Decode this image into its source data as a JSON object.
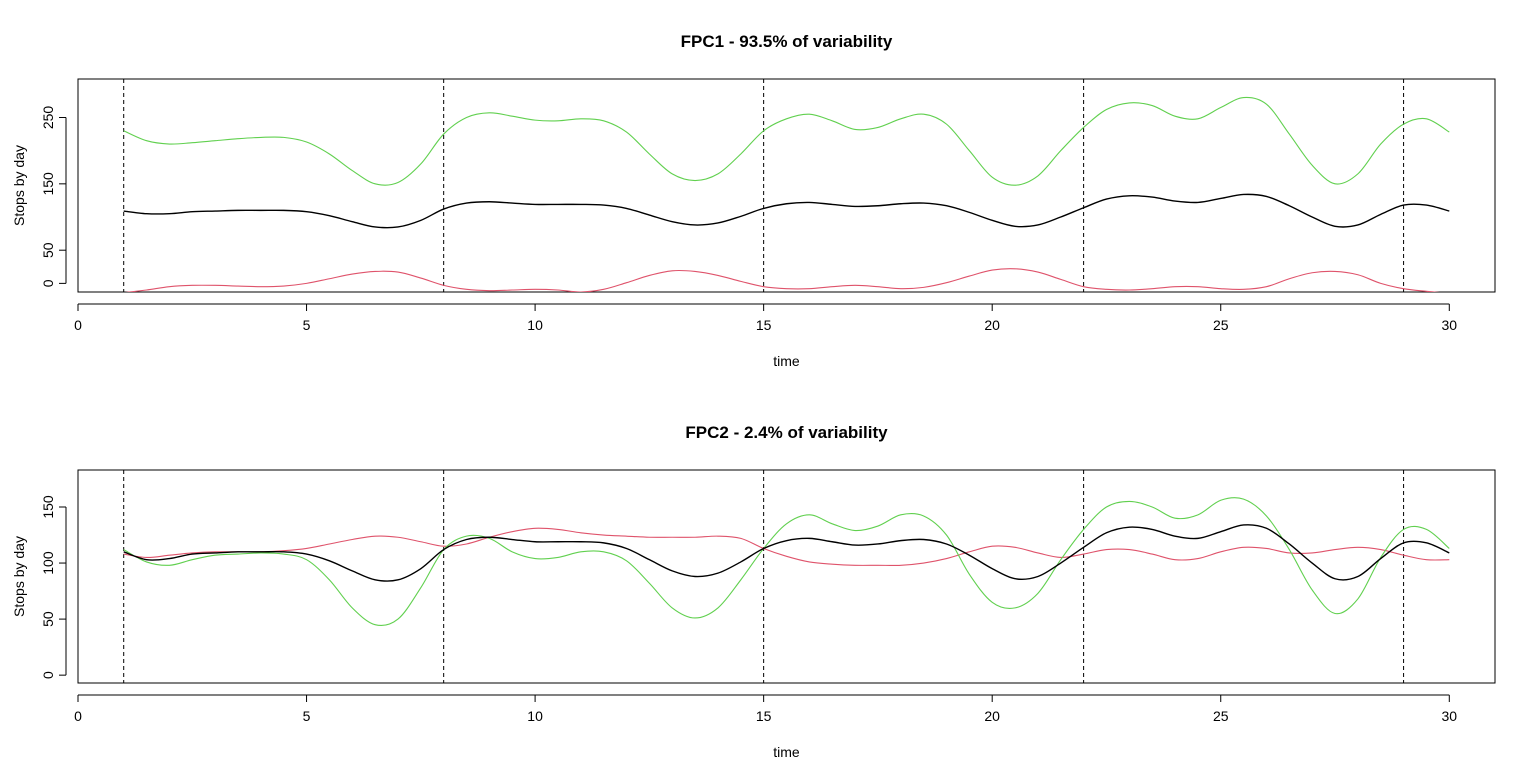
{
  "colors": {
    "mean": "#000000",
    "minus": "#DF536B",
    "plus": "#61D04F"
  },
  "chart_data": [
    {
      "type": "line",
      "title": "FPC1 - 93.5% of variability",
      "xlabel": "time",
      "ylabel": "Stops by day",
      "xlim": [
        0,
        31
      ],
      "ylim": [
        -13,
        308
      ],
      "xticks": [
        0,
        5,
        10,
        15,
        20,
        25,
        30
      ],
      "xtick_labels": [
        "0",
        "5",
        "10",
        "15",
        "20",
        "25",
        "30"
      ],
      "yticks": [
        0,
        50,
        150,
        250
      ],
      "ytick_labels": [
        "0",
        "50",
        "150",
        "250"
      ],
      "vlines": [
        1,
        8,
        15,
        22,
        29
      ],
      "grid": false,
      "series": [
        {
          "role": "mean",
          "color": "#000000",
          "x": [
            1,
            1.5,
            2,
            2.5,
            3,
            3.5,
            4,
            4.5,
            5,
            5.5,
            6,
            6.5,
            7,
            7.5,
            8,
            8.5,
            9,
            9.5,
            10,
            10.5,
            11,
            11.5,
            12,
            12.5,
            13,
            13.5,
            14,
            14.5,
            15,
            15.5,
            16,
            16.5,
            17,
            17.5,
            18,
            18.5,
            19,
            19.5,
            20,
            20.5,
            21,
            21.5,
            22,
            22.5,
            23,
            23.5,
            24,
            24.5,
            25,
            25.5,
            26,
            26.5,
            27,
            27.5,
            28,
            28.5,
            29,
            29.5,
            30
          ],
          "y": [
            109,
            105,
            105,
            108,
            109,
            110,
            110,
            110,
            108,
            102,
            93,
            85,
            85,
            95,
            112,
            121,
            123,
            121,
            119,
            119,
            119,
            118,
            113,
            103,
            93,
            88,
            91,
            101,
            113,
            120,
            122,
            119,
            116,
            117,
            120,
            121,
            117,
            107,
            95,
            86,
            88,
            100,
            114,
            127,
            132,
            130,
            124,
            122,
            128,
            134,
            131,
            117,
            100,
            86,
            88,
            104,
            118,
            118,
            109
          ]
        },
        {
          "role": "minus",
          "color": "#DF536B",
          "x": [
            1,
            1.5,
            2,
            2.5,
            3,
            3.5,
            4,
            4.5,
            5,
            5.5,
            6,
            6.5,
            7,
            7.5,
            8,
            8.5,
            9,
            9.5,
            10,
            10.5,
            11,
            11.5,
            12,
            12.5,
            13,
            13.5,
            14,
            14.5,
            15,
            15.5,
            16,
            16.5,
            17,
            17.5,
            18,
            18.5,
            19,
            19.5,
            20,
            20.5,
            21,
            21.5,
            22,
            22.5,
            23,
            23.5,
            24,
            24.5,
            25,
            25.5,
            26,
            26.5,
            27,
            27.5,
            28,
            28.5,
            29,
            29.5,
            30
          ],
          "y": [
            -14,
            -10,
            -5,
            -3,
            -3,
            -4,
            -5,
            -4,
            0,
            7,
            14,
            18,
            17,
            8,
            -3,
            -9,
            -11,
            -10,
            -9,
            -10,
            -13,
            -9,
            1,
            12,
            19,
            18,
            12,
            3,
            -5,
            -8,
            -8,
            -5,
            -3,
            -5,
            -8,
            -6,
            1,
            11,
            20,
            22,
            17,
            6,
            -5,
            -9,
            -10,
            -8,
            -5,
            -5,
            -8,
            -9,
            -5,
            7,
            16,
            18,
            13,
            0,
            -8,
            -12,
            -15
          ]
        },
        {
          "role": "plus",
          "color": "#61D04F",
          "x": [
            1,
            1.5,
            2,
            2.5,
            3,
            3.5,
            4,
            4.5,
            5,
            5.5,
            6,
            6.5,
            7,
            7.5,
            8,
            8.5,
            9,
            9.5,
            10,
            10.5,
            11,
            11.5,
            12,
            12.5,
            13,
            13.5,
            14,
            14.5,
            15,
            15.5,
            16,
            16.5,
            17,
            17.5,
            18,
            18.5,
            19,
            19.5,
            20,
            20.5,
            21,
            21.5,
            22,
            22.5,
            23,
            23.5,
            24,
            24.5,
            25,
            25.5,
            26,
            26.5,
            27,
            27.5,
            28,
            28.5,
            29,
            29.5,
            30
          ],
          "y": [
            230,
            215,
            210,
            212,
            215,
            218,
            220,
            220,
            213,
            195,
            170,
            150,
            152,
            180,
            225,
            250,
            257,
            252,
            246,
            245,
            248,
            245,
            228,
            195,
            165,
            155,
            165,
            195,
            230,
            248,
            255,
            245,
            232,
            235,
            248,
            255,
            240,
            200,
            160,
            148,
            162,
            200,
            235,
            262,
            272,
            268,
            252,
            248,
            265,
            280,
            270,
            225,
            178,
            150,
            165,
            210,
            240,
            248,
            228
          ]
        }
      ]
    },
    {
      "type": "line",
      "title": "FPC2 - 2.4% of variability",
      "xlabel": "time",
      "ylabel": "Stops by day",
      "xlim": [
        0,
        31
      ],
      "ylim": [
        -7,
        183
      ],
      "xticks": [
        0,
        5,
        10,
        15,
        20,
        25,
        30
      ],
      "xtick_labels": [
        "0",
        "5",
        "10",
        "15",
        "20",
        "25",
        "30"
      ],
      "yticks": [
        0,
        50,
        100,
        150
      ],
      "ytick_labels": [
        "0",
        "50",
        "100",
        "150"
      ],
      "vlines": [
        1,
        8,
        15,
        22,
        29
      ],
      "grid": false,
      "series": [
        {
          "role": "mean",
          "color": "#000000",
          "x": [
            1,
            1.5,
            2,
            2.5,
            3,
            3.5,
            4,
            4.5,
            5,
            5.5,
            6,
            6.5,
            7,
            7.5,
            8,
            8.5,
            9,
            9.5,
            10,
            10.5,
            11,
            11.5,
            12,
            12.5,
            13,
            13.5,
            14,
            14.5,
            15,
            15.5,
            16,
            16.5,
            17,
            17.5,
            18,
            18.5,
            19,
            19.5,
            20,
            20.5,
            21,
            21.5,
            22,
            22.5,
            23,
            23.5,
            24,
            24.5,
            25,
            25.5,
            26,
            26.5,
            27,
            27.5,
            28,
            28.5,
            29,
            29.5,
            30
          ],
          "y": [
            110,
            103,
            104,
            108,
            109,
            110,
            110,
            110,
            108,
            102,
            93,
            85,
            85,
            95,
            112,
            121,
            123,
            121,
            119,
            119,
            119,
            118,
            113,
            103,
            93,
            88,
            91,
            101,
            113,
            120,
            122,
            119,
            116,
            117,
            120,
            121,
            117,
            107,
            95,
            86,
            88,
            100,
            114,
            127,
            132,
            130,
            124,
            122,
            128,
            134,
            131,
            117,
            100,
            86,
            88,
            104,
            118,
            118,
            109
          ]
        },
        {
          "role": "minus",
          "color": "#DF536B",
          "x": [
            1,
            1.5,
            2,
            2.5,
            3,
            3.5,
            4,
            4.5,
            5,
            5.5,
            6,
            6.5,
            7,
            7.5,
            8,
            8.5,
            9,
            9.5,
            10,
            10.5,
            11,
            11.5,
            12,
            12.5,
            13,
            13.5,
            14,
            14.5,
            15,
            15.5,
            16,
            16.5,
            17,
            17.5,
            18,
            18.5,
            19,
            19.5,
            20,
            20.5,
            21,
            21.5,
            22,
            22.5,
            23,
            23.5,
            24,
            24.5,
            25,
            25.5,
            26,
            26.5,
            27,
            27.5,
            28,
            28.5,
            29,
            29.5,
            30
          ],
          "y": [
            108,
            105,
            107,
            109,
            110,
            110,
            110,
            111,
            113,
            117,
            121,
            124,
            123,
            119,
            115,
            117,
            123,
            128,
            131,
            130,
            127,
            125,
            124,
            123,
            123,
            123,
            124,
            122,
            113,
            106,
            101,
            99,
            98,
            98,
            98,
            100,
            104,
            110,
            115,
            114,
            109,
            105,
            108,
            112,
            112,
            108,
            103,
            104,
            110,
            114,
            113,
            109,
            109,
            112,
            114,
            112,
            107,
            103,
            103
          ]
        },
        {
          "role": "plus",
          "color": "#61D04F",
          "x": [
            1,
            1.5,
            2,
            2.5,
            3,
            3.5,
            4,
            4.5,
            5,
            5.5,
            6,
            6.5,
            7,
            7.5,
            8,
            8.5,
            9,
            9.5,
            10,
            10.5,
            11,
            11.5,
            12,
            12.5,
            13,
            13.5,
            14,
            14.5,
            15,
            15.5,
            16,
            16.5,
            17,
            17.5,
            18,
            18.5,
            19,
            19.5,
            20,
            20.5,
            21,
            21.5,
            22,
            22.5,
            23,
            23.5,
            24,
            24.5,
            25,
            25.5,
            26,
            26.5,
            27,
            27.5,
            28,
            28.5,
            29,
            29.5,
            30
          ],
          "y": [
            112,
            101,
            98,
            103,
            107,
            108,
            109,
            108,
            103,
            85,
            60,
            45,
            50,
            78,
            112,
            124,
            122,
            110,
            104,
            105,
            110,
            110,
            102,
            82,
            60,
            51,
            60,
            85,
            113,
            135,
            143,
            135,
            129,
            133,
            143,
            142,
            125,
            90,
            65,
            60,
            73,
            103,
            130,
            150,
            155,
            150,
            140,
            143,
            156,
            157,
            142,
            112,
            76,
            55,
            68,
            105,
            130,
            130,
            113
          ]
        }
      ]
    }
  ]
}
